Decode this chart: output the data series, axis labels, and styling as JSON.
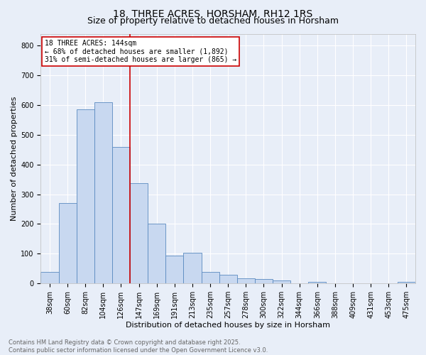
{
  "title1": "18, THREE ACRES, HORSHAM, RH12 1RS",
  "title2": "Size of property relative to detached houses in Horsham",
  "xlabel": "Distribution of detached houses by size in Horsham",
  "ylabel": "Number of detached properties",
  "bar_color": "#c8d8f0",
  "bar_edge_color": "#5a8ac0",
  "background_color": "#e8eef8",
  "grid_color": "#ffffff",
  "categories": [
    "38sqm",
    "60sqm",
    "82sqm",
    "104sqm",
    "126sqm",
    "147sqm",
    "169sqm",
    "191sqm",
    "213sqm",
    "235sqm",
    "257sqm",
    "278sqm",
    "300sqm",
    "322sqm",
    "344sqm",
    "366sqm",
    "388sqm",
    "409sqm",
    "431sqm",
    "453sqm",
    "475sqm"
  ],
  "values": [
    38,
    270,
    585,
    610,
    460,
    337,
    200,
    93,
    102,
    38,
    30,
    16,
    15,
    10,
    0,
    5,
    0,
    0,
    0,
    0,
    5
  ],
  "vline_index": 5,
  "vline_color": "#cc0000",
  "annotation_text": "18 THREE ACRES: 144sqm\n← 68% of detached houses are smaller (1,892)\n31% of semi-detached houses are larger (865) →",
  "annotation_box_color": "#ffffff",
  "annotation_box_edge_color": "#cc0000",
  "ylim": [
    0,
    840
  ],
  "yticks": [
    0,
    100,
    200,
    300,
    400,
    500,
    600,
    700,
    800
  ],
  "footer_text": "Contains HM Land Registry data © Crown copyright and database right 2025.\nContains public sector information licensed under the Open Government Licence v3.0.",
  "title_fontsize": 10,
  "subtitle_fontsize": 9,
  "axis_label_fontsize": 8,
  "tick_fontsize": 7,
  "annotation_fontsize": 7,
  "footer_fontsize": 6
}
